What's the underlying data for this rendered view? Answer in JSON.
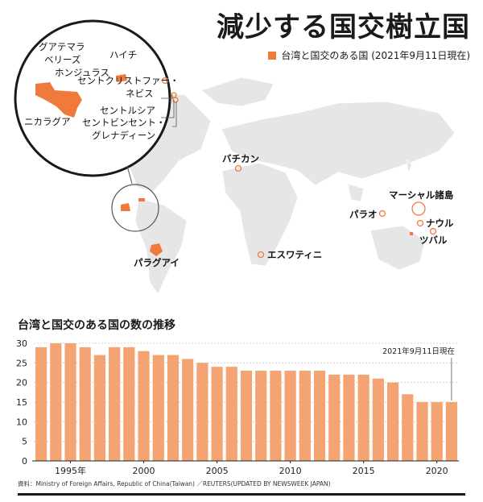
{
  "title": "減少する国交樹立国",
  "legend": {
    "label": "台湾と国交のある国 (2021年9月11日現在)",
    "color": "#f07a3c"
  },
  "map": {
    "labels": [
      "バチカン",
      "マーシャル諸島",
      "パラオ",
      "ナウル",
      "ツバル",
      "パラグアイ",
      "エスワティニ"
    ],
    "inset_labels": [
      "グアテマラ",
      "ベリーズ",
      "ホンジュラス",
      "ハイチ",
      "セントクリストファー・",
      "ネビス",
      "セントルシア",
      "セントビンセント・",
      "グレナディーン",
      "ニカラグア"
    ]
  },
  "chart_title": "台湾と国交のある国の数の推移",
  "source": "資料：Ministry of Foreign Affairs, Republic of China(Taiwan) ／REUTERS(UPDATED BY NEWSWEEK JAPAN)",
  "chart_data": {
    "type": "bar",
    "title": "台湾と国交のある国の数の推移",
    "x": [
      1993,
      1994,
      1995,
      1996,
      1997,
      1998,
      1999,
      2000,
      2001,
      2002,
      2003,
      2004,
      2005,
      2006,
      2007,
      2008,
      2009,
      2010,
      2011,
      2012,
      2013,
      2014,
      2015,
      2016,
      2017,
      2018,
      2019,
      2020,
      2021
    ],
    "values": [
      29,
      30,
      30,
      29,
      27,
      29,
      29,
      28,
      27,
      27,
      26,
      25,
      24,
      24,
      23,
      23,
      23,
      23,
      23,
      23,
      22,
      22,
      22,
      21,
      20,
      17,
      15,
      15,
      15
    ],
    "ylim": [
      0,
      30
    ],
    "yticks": [
      "0",
      "5",
      "10",
      "15",
      "20",
      "25",
      "30"
    ],
    "xtick_labels": [
      "1995年",
      "2000",
      "2005",
      "2010",
      "2015",
      "2020"
    ],
    "annotation": "2021年9月11日現在",
    "bar_color": "#f4a473",
    "grid": true
  }
}
